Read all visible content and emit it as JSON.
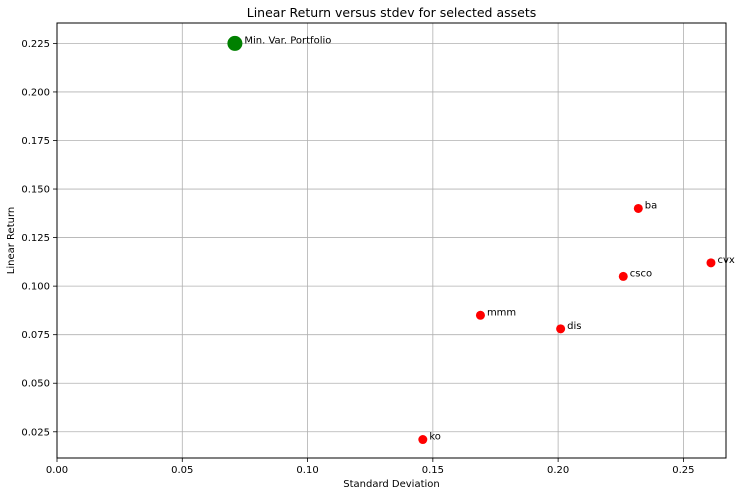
{
  "chart_data": {
    "type": "scatter",
    "title": "Linear Return versus stdev for selected assets",
    "xlabel": "Standard Deviation",
    "ylabel": "Linear Return",
    "xlim": [
      0.0,
      0.267
    ],
    "ylim": [
      0.0115,
      0.2355
    ],
    "xticks": [
      0.0,
      0.05,
      0.1,
      0.15,
      0.2,
      0.25
    ],
    "xtick_labels": [
      "0.00",
      "0.05",
      "0.10",
      "0.15",
      "0.20",
      "0.25"
    ],
    "yticks": [
      0.025,
      0.05,
      0.075,
      0.1,
      0.125,
      0.15,
      0.175,
      0.2,
      0.225
    ],
    "ytick_labels": [
      "0.025",
      "0.050",
      "0.075",
      "0.100",
      "0.125",
      "0.150",
      "0.175",
      "0.200",
      "0.225"
    ],
    "grid": true,
    "series": [
      {
        "color": "#ff0000",
        "marker": "circle",
        "points": [
          {
            "label": "ba",
            "x": 0.232,
            "y": 0.14
          },
          {
            "label": "cvx",
            "x": 0.261,
            "y": 0.112
          },
          {
            "label": "csco",
            "x": 0.226,
            "y": 0.105
          },
          {
            "label": "mmm",
            "x": 0.169,
            "y": 0.085
          },
          {
            "label": "dis",
            "x": 0.201,
            "y": 0.078
          },
          {
            "label": "ko",
            "x": 0.146,
            "y": 0.021
          }
        ]
      },
      {
        "color": "#008000",
        "marker": "circle-large",
        "points": [
          {
            "label": "Min. Var. Portfolio",
            "x": 0.071,
            "y": 0.225
          }
        ]
      }
    ]
  }
}
